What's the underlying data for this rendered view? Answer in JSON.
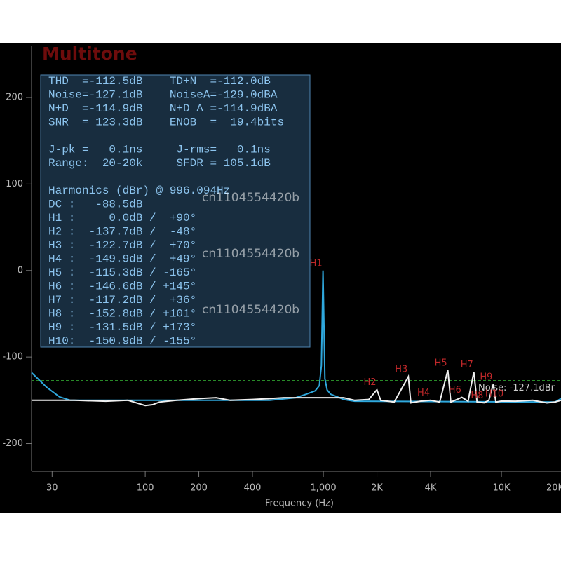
{
  "chart_data": {
    "type": "line",
    "title": "Multitone",
    "x_label": "Frequency (Hz)",
    "x_scale": "log",
    "xlim": [
      23,
      21600
    ],
    "ylim": [
      -232,
      260
    ],
    "xticks": [
      30,
      100,
      200,
      400,
      {
        "value": 1000,
        "label": "1,000"
      },
      {
        "value": 2000,
        "label": "2K"
      },
      {
        "value": 4000,
        "label": "4K"
      },
      {
        "value": 10000,
        "label": "10K"
      },
      {
        "value": 20000,
        "label": "20K"
      }
    ],
    "yticks": [
      -200,
      -100,
      0,
      100,
      200
    ],
    "series": [
      {
        "color": "#2fa8dd",
        "x": [
          23,
          28,
          33,
          38,
          500,
          700,
          800,
          900,
          950,
          975,
          985,
          996.094,
          1007,
          1020,
          1050,
          1100,
          1200,
          1300,
          1500,
          20000,
          21600
        ],
        "values": [
          -118,
          -135,
          -146,
          -150,
          -150,
          -147,
          -143,
          -139,
          -133,
          -110,
          -60,
          0,
          -60,
          -125,
          -138,
          -143,
          -146,
          -149,
          -151,
          -152,
          -148
        ]
      },
      {
        "color": "#f0f0f0",
        "x": [
          23,
          40,
          60,
          80,
          100,
          110,
          120,
          150,
          200,
          250,
          300,
          400,
          500,
          600,
          800,
          1300,
          1500,
          1800,
          2000,
          2100,
          2500,
          3000,
          3100,
          3500,
          4000,
          4500,
          5000,
          5200,
          6000,
          6500,
          7000,
          7300,
          8000,
          8500,
          9000,
          9300,
          10000,
          12000,
          15000,
          18000,
          20000,
          21600
        ],
        "values": [
          -150,
          -150,
          -151,
          -150,
          -156,
          -155,
          -152,
          -150,
          -148,
          -147,
          -150,
          -149,
          -148,
          -147,
          -147,
          -147,
          -150,
          -149,
          -137.7,
          -150,
          -152,
          -122.7,
          -153,
          -151,
          -149.9,
          -152,
          -115.3,
          -152,
          -146.6,
          -151,
          -117.2,
          -152,
          -152.8,
          -150,
          -131.5,
          -152,
          -150.9,
          -151,
          -150,
          -153,
          -152,
          -150
        ]
      }
    ],
    "reference_line": {
      "value": -127.1,
      "color": "#2e9e2e",
      "label": "Noise: -127.1dBr"
    },
    "harmonic_markers": [
      {
        "label": "H1",
        "x": 996.094,
        "y": 0
      },
      {
        "label": "H2",
        "x": 2000,
        "y": -137.7
      },
      {
        "label": "H3",
        "x": 3000,
        "y": -122.7
      },
      {
        "label": "H4",
        "x": 4000,
        "y": -149.9
      },
      {
        "label": "H5",
        "x": 5000,
        "y": -115.3
      },
      {
        "label": "H6",
        "x": 6000,
        "y": -146.6
      },
      {
        "label": "H7",
        "x": 7000,
        "y": -117.2
      },
      {
        "label": "H8",
        "x": 8000,
        "y": -152.8
      },
      {
        "label": "H9",
        "x": 9000,
        "y": -131.5
      },
      {
        "label": "H10",
        "x": 10000,
        "y": -150.9
      }
    ],
    "panel": {
      "groups": [
        [
          "THD  =-112.5dB    TD+N  =-112.0dB",
          "Noise=-127.1dB    NoiseA=-129.0dBA",
          "N+D  =-114.9dB    N+D A =-114.9dBA",
          "SNR  = 123.3dB    ENOB  =  19.4bits"
        ],
        [
          "J-pk =   0.1ns     J-rms=   0.1ns",
          "Range:  20-20k     SFDR = 105.1dB"
        ],
        [
          "Harmonics (dBr) @ 996.094Hz",
          "DC :   -88.5dB",
          "H1 :     0.0dB /  +90°",
          "H2 :  -137.7dB /  -48°",
          "H3 :  -122.7dB /  +70°",
          "H4 :  -149.9dB /  +49°",
          "H5 :  -115.3dB / -165°",
          "H6 :  -146.6dB / +145°",
          "H7 :  -117.2dB /  +36°",
          "H8 :  -152.8dB / +101°",
          "H9 :  -131.5dB / +173°",
          "H10:  -150.9dB / -155°"
        ]
      ]
    },
    "watermarks": [
      "cn1104554420b",
      "cn1104554420b",
      "cn1104554420b"
    ]
  }
}
